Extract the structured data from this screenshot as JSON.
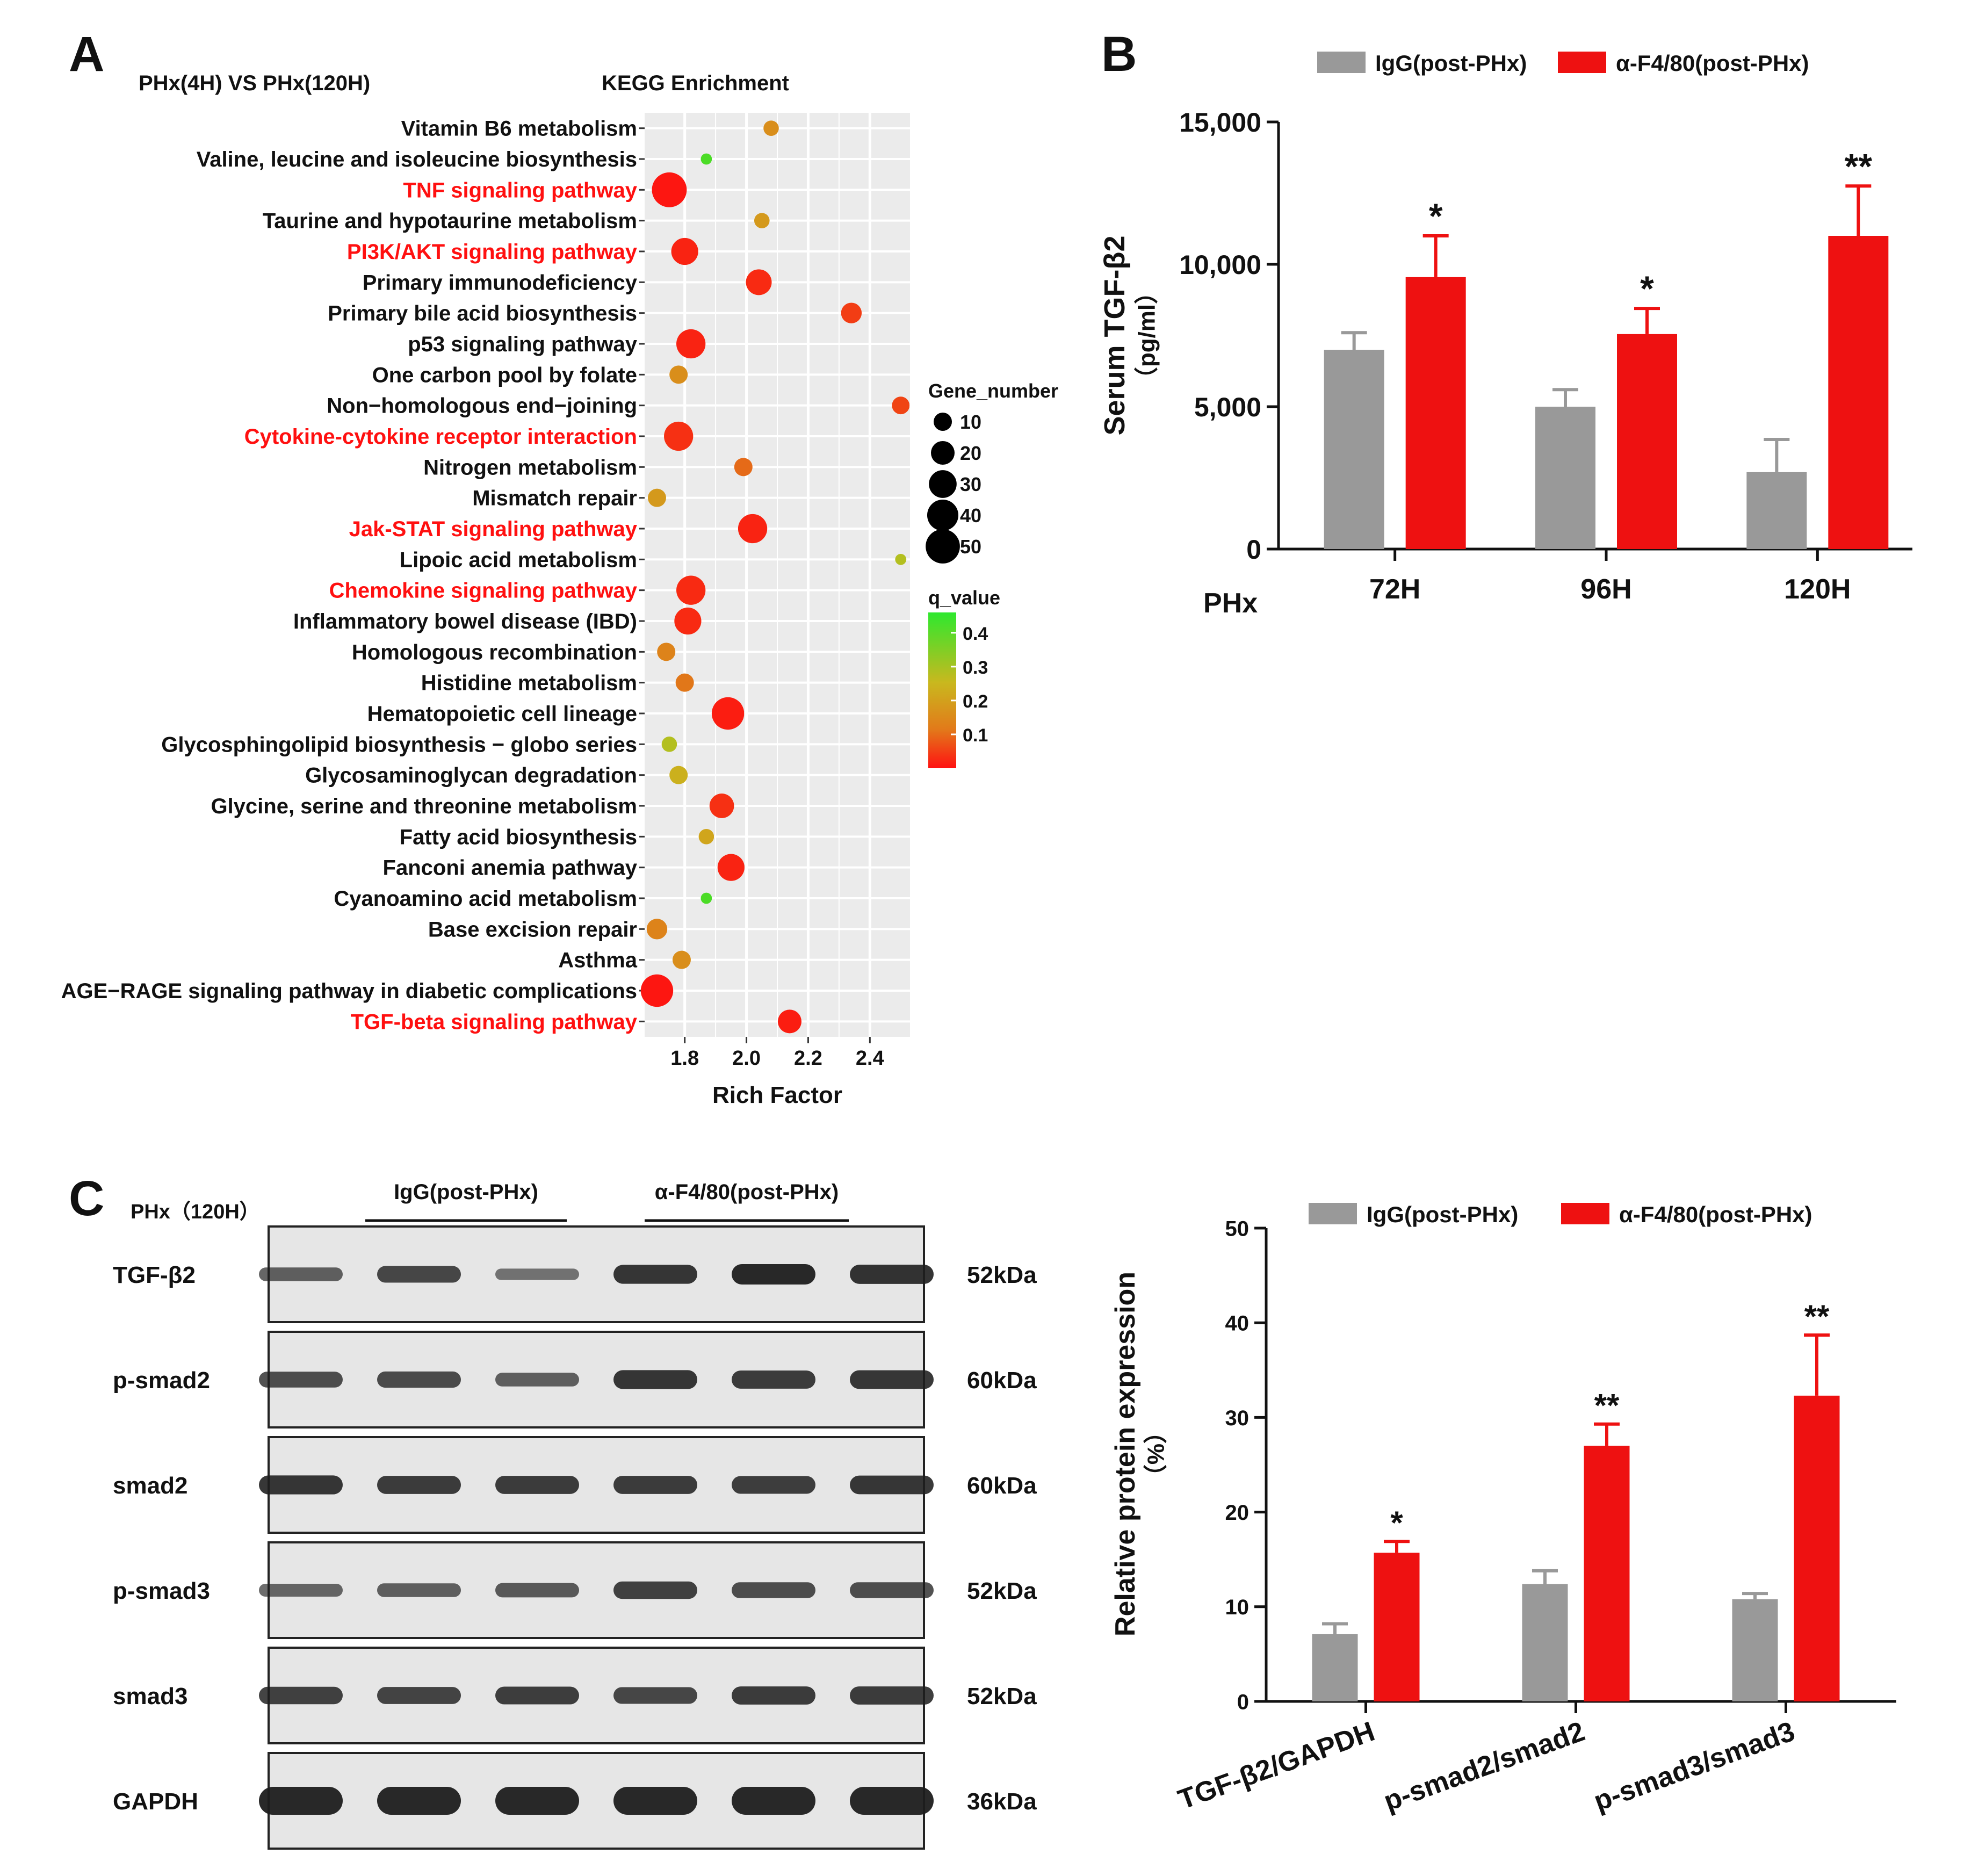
{
  "colors": {
    "red": "#ee1111",
    "gray": "#999999",
    "highlight": "#ff1010",
    "panel_bg": "#ebebeb",
    "grid": "#ffffff",
    "blot_bg": "#e6e6e6",
    "band": "#1e1e1e"
  },
  "panel_labels": [
    "A",
    "B",
    "C"
  ],
  "chart_data": [
    {
      "id": "A",
      "type": "scatter",
      "subtitle": "PHx(4H) VS PHx(120H)",
      "title": "KEGG Enrichment",
      "xlabel": "Rich Factor",
      "ylabel": "",
      "xlim": [
        1.67,
        2.53
      ],
      "xticks": [
        1.8,
        2.0,
        2.2,
        2.4
      ],
      "xtick_labels": [
        "1.8",
        "2.0",
        "2.2",
        "2.4"
      ],
      "grid": true,
      "size_legend_title": "Gene_number",
      "size_legend": [
        10,
        20,
        30,
        40,
        50
      ],
      "color_legend_title": "q_value",
      "color_legend": [
        0.4,
        0.3,
        0.2,
        0.1
      ],
      "color_legend_labels": [
        "0.4",
        "0.3",
        "0.2",
        "0.1"
      ],
      "q_range": [
        0.0,
        0.46
      ],
      "points": [
        {
          "pathway": "Vitamin B6 metabolism",
          "rich_factor": 2.08,
          "gene_number": 6,
          "q_value": 0.2,
          "highlight": false
        },
        {
          "pathway": "Valine, leucine and isoleucine biosynthesis",
          "rich_factor": 1.87,
          "gene_number": 2,
          "q_value": 0.42,
          "highlight": false
        },
        {
          "pathway": "TNF signaling pathway",
          "rich_factor": 1.75,
          "gene_number": 52,
          "q_value": 0.01,
          "highlight": true
        },
        {
          "pathway": "Taurine and hypotaurine metabolism",
          "rich_factor": 2.05,
          "gene_number": 6,
          "q_value": 0.22,
          "highlight": false
        },
        {
          "pathway": "PI3K/AKT signaling pathway",
          "rich_factor": 1.8,
          "gene_number": 28,
          "q_value": 0.03,
          "highlight": true
        },
        {
          "pathway": "Primary immunodeficiency",
          "rich_factor": 2.04,
          "gene_number": 25,
          "q_value": 0.04,
          "highlight": false
        },
        {
          "pathway": "Primary bile acid biosynthesis",
          "rich_factor": 2.34,
          "gene_number": 14,
          "q_value": 0.07,
          "highlight": false
        },
        {
          "pathway": "p53 signaling pathway",
          "rich_factor": 1.82,
          "gene_number": 34,
          "q_value": 0.03,
          "highlight": false
        },
        {
          "pathway": "One carbon pool by folate",
          "rich_factor": 1.78,
          "gene_number": 10,
          "q_value": 0.2,
          "highlight": false
        },
        {
          "pathway": "Non−homologous end−joining",
          "rich_factor": 2.5,
          "gene_number": 9,
          "q_value": 0.08,
          "highlight": false
        },
        {
          "pathway": "Cytokine-cytokine receptor interaction",
          "rich_factor": 1.78,
          "gene_number": 34,
          "q_value": 0.05,
          "highlight": true
        },
        {
          "pathway": "Nitrogen metabolism",
          "rich_factor": 1.99,
          "gene_number": 10,
          "q_value": 0.14,
          "highlight": false
        },
        {
          "pathway": "Mismatch repair",
          "rich_factor": 1.71,
          "gene_number": 10,
          "q_value": 0.22,
          "highlight": false
        },
        {
          "pathway": "Jak-STAT signaling pathway",
          "rich_factor": 2.02,
          "gene_number": 34,
          "q_value": 0.03,
          "highlight": true
        },
        {
          "pathway": "Lipoic acid metabolism",
          "rich_factor": 2.5,
          "gene_number": 2,
          "q_value": 0.3,
          "highlight": false
        },
        {
          "pathway": "Chemokine signaling pathway",
          "rich_factor": 1.82,
          "gene_number": 34,
          "q_value": 0.04,
          "highlight": true
        },
        {
          "pathway": "Inflammatory bowel disease (IBD)",
          "rich_factor": 1.81,
          "gene_number": 28,
          "q_value": 0.04,
          "highlight": false
        },
        {
          "pathway": "Homologous recombination",
          "rich_factor": 1.74,
          "gene_number": 10,
          "q_value": 0.18,
          "highlight": false
        },
        {
          "pathway": "Histidine metabolism",
          "rich_factor": 1.8,
          "gene_number": 10,
          "q_value": 0.16,
          "highlight": false
        },
        {
          "pathway": "Hematopoietic cell lineage",
          "rich_factor": 1.94,
          "gene_number": 44,
          "q_value": 0.02,
          "highlight": false
        },
        {
          "pathway": "Glycosphingolipid biosynthesis − globo series",
          "rich_factor": 1.75,
          "gene_number": 6,
          "q_value": 0.3,
          "highlight": false
        },
        {
          "pathway": "Glycosaminoglycan degradation",
          "rich_factor": 1.78,
          "gene_number": 10,
          "q_value": 0.26,
          "highlight": false
        },
        {
          "pathway": "Glycine, serine and threonine metabolism",
          "rich_factor": 1.92,
          "gene_number": 22,
          "q_value": 0.05,
          "highlight": false
        },
        {
          "pathway": "Fatty acid biosynthesis",
          "rich_factor": 1.87,
          "gene_number": 6,
          "q_value": 0.24,
          "highlight": false
        },
        {
          "pathway": "Fanconi anemia pathway",
          "rich_factor": 1.95,
          "gene_number": 28,
          "q_value": 0.03,
          "highlight": false
        },
        {
          "pathway": "Cyanoamino acid metabolism",
          "rich_factor": 1.87,
          "gene_number": 2,
          "q_value": 0.42,
          "highlight": false
        },
        {
          "pathway": "Base excision repair",
          "rich_factor": 1.71,
          "gene_number": 14,
          "q_value": 0.18,
          "highlight": false
        },
        {
          "pathway": "Asthma",
          "rich_factor": 1.79,
          "gene_number": 10,
          "q_value": 0.2,
          "highlight": false
        },
        {
          "pathway": "AGE−RAGE signaling pathway in diabetic complications",
          "rich_factor": 1.71,
          "gene_number": 44,
          "q_value": 0.01,
          "highlight": false
        },
        {
          "pathway": "TGF-beta signaling pathway",
          "rich_factor": 2.14,
          "gene_number": 20,
          "q_value": 0.02,
          "highlight": true
        }
      ]
    },
    {
      "id": "B",
      "type": "bar",
      "title": "",
      "xlabel": "PHx",
      "ylabel": "Serum TGF-β2",
      "ylabel_unit": "（pg/ml）",
      "ylim": [
        0,
        15000
      ],
      "yticks": [
        0,
        5000,
        10000,
        15000
      ],
      "ytick_labels": [
        "0",
        "5,000",
        "10,000",
        "15,000"
      ],
      "categories": [
        "72H",
        "96H",
        "120H"
      ],
      "series": [
        {
          "name": "IgG(post-PHx)",
          "color": "#999999",
          "values": [
            7000,
            5000,
            2700
          ],
          "errors": [
            600,
            600,
            1150
          ],
          "significance": [
            "",
            "",
            ""
          ]
        },
        {
          "name": "α-F4/80(post-PHx)",
          "color": "#ee1111",
          "values": [
            9550,
            7550,
            11000
          ],
          "errors": [
            1450,
            900,
            1750
          ],
          "significance": [
            "*",
            "*",
            "**"
          ]
        }
      ]
    },
    {
      "id": "C-chart",
      "type": "bar",
      "title": "",
      "xlabel": "",
      "ylabel": "Relative protein expression",
      "ylabel_unit": "（%）",
      "ylim": [
        0,
        50
      ],
      "yticks": [
        0,
        10,
        20,
        30,
        40,
        50
      ],
      "ytick_labels": [
        "0",
        "10",
        "20",
        "30",
        "40",
        "50"
      ],
      "categories": [
        "TGF-β2/GAPDH",
        "p-smad2/smad2",
        "p-smad3/smad3"
      ],
      "series": [
        {
          "name": "IgG(post-PHx)",
          "color": "#999999",
          "values": [
            7.1,
            12.4,
            10.8
          ],
          "errors": [
            1.1,
            1.4,
            0.6
          ],
          "significance": [
            "",
            "",
            ""
          ]
        },
        {
          "name": "α-F4/80(post-PHx)",
          "color": "#ee1111",
          "values": [
            15.7,
            27.0,
            32.3
          ],
          "errors": [
            1.2,
            2.3,
            6.4
          ],
          "significance": [
            "*",
            "**",
            "**"
          ]
        }
      ]
    }
  ],
  "blot": {
    "condition": "PHx（120H）",
    "groups": [
      "IgG(post-PHx)",
      "α-F4/80(post-PHx)"
    ],
    "rows": [
      {
        "protein": "TGF-β2",
        "size": "52kDa",
        "intensity": [
          0.55,
          0.75,
          0.4,
          0.9,
          1.0,
          0.92
        ]
      },
      {
        "protein": "p-smad2",
        "size": "60kDa",
        "intensity": [
          0.7,
          0.72,
          0.55,
          0.9,
          0.85,
          0.88
        ]
      },
      {
        "protein": "smad2",
        "size": "60kDa",
        "intensity": [
          0.9,
          0.85,
          0.85,
          0.85,
          0.82,
          0.88
        ]
      },
      {
        "protein": "p-smad3",
        "size": "52kDa",
        "intensity": [
          0.5,
          0.55,
          0.6,
          0.8,
          0.7,
          0.7
        ]
      },
      {
        "protein": "smad3",
        "size": "52kDa",
        "intensity": [
          0.8,
          0.78,
          0.82,
          0.75,
          0.85,
          0.85
        ]
      },
      {
        "protein": "GAPDH",
        "size": "36kDa",
        "intensity": [
          1.0,
          1.0,
          1.0,
          1.0,
          1.0,
          1.0
        ]
      }
    ]
  }
}
